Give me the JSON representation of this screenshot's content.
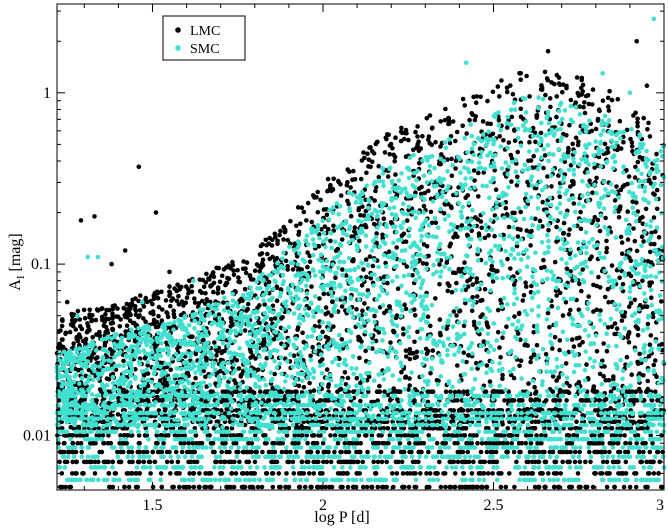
{
  "chart_data": {
    "type": "scatter",
    "xlabel": "log P [d]",
    "ylabel": "A",
    "ylabel_subscript": "I",
    "ylabel_unit": " [mag]",
    "xlim": [
      1.22,
      3.0
    ],
    "ylim": [
      0.0048,
      3.3
    ],
    "y_scale": "log",
    "x_ticks": [
      {
        "value": 1.5,
        "label": "1.5"
      },
      {
        "value": 2.0,
        "label": "2"
      },
      {
        "value": 2.5,
        "label": "2.5"
      },
      {
        "value": 3.0,
        "label": "3"
      }
    ],
    "y_ticks": [
      {
        "value": 0.01,
        "label": "0.01"
      },
      {
        "value": 0.1,
        "label": "0.1"
      },
      {
        "value": 1.0,
        "label": "1"
      }
    ],
    "grid": false,
    "legend_position": "top-left",
    "series": [
      {
        "name": "LMC",
        "color": "#000000",
        "envelope_logP": [
          1.22,
          1.4,
          1.6,
          1.8,
          2.0,
          2.2,
          2.4,
          2.6,
          2.8,
          3.0
        ],
        "envelope_upper_A": [
          0.05,
          0.06,
          0.08,
          0.12,
          0.3,
          0.6,
          0.9,
          1.4,
          1.2,
          0.6
        ],
        "floor_A": 0.005,
        "quantization_levels_A": [
          0.005,
          0.006,
          0.007,
          0.008,
          0.009,
          0.01,
          0.011,
          0.012,
          0.013,
          0.014,
          0.016,
          0.018
        ],
        "scattered_points": [
          {
            "x": 1.29,
            "y": 0.18
          },
          {
            "x": 1.33,
            "y": 0.19
          },
          {
            "x": 1.46,
            "y": 0.37
          },
          {
            "x": 1.51,
            "y": 0.2
          },
          {
            "x": 1.42,
            "y": 0.12
          },
          {
            "x": 2.58,
            "y": 1.3
          },
          {
            "x": 2.66,
            "y": 1.75
          },
          {
            "x": 2.92,
            "y": 2.0
          },
          {
            "x": 2.95,
            "y": 1.1
          },
          {
            "x": 1.25,
            "y": 0.06
          },
          {
            "x": 1.38,
            "y": 0.1
          },
          {
            "x": 1.55,
            "y": 0.09
          }
        ]
      },
      {
        "name": "SMC",
        "color": "#40e0d0",
        "envelope_logP": [
          1.22,
          1.4,
          1.6,
          1.8,
          2.0,
          2.2,
          2.4,
          2.6,
          2.8,
          3.0
        ],
        "envelope_upper_A": [
          0.03,
          0.04,
          0.05,
          0.08,
          0.2,
          0.4,
          0.6,
          1.0,
          0.8,
          0.5
        ],
        "floor_A": 0.005,
        "quantization_levels_A": [
          0.0055,
          0.0065,
          0.0075,
          0.0085,
          0.0095,
          0.0105,
          0.0115,
          0.0125,
          0.0135,
          0.015,
          0.017
        ],
        "scattered_points": [
          {
            "x": 1.31,
            "y": 0.11
          },
          {
            "x": 1.34,
            "y": 0.11
          },
          {
            "x": 1.47,
            "y": 0.06
          },
          {
            "x": 2.42,
            "y": 1.5
          },
          {
            "x": 2.82,
            "y": 1.3
          },
          {
            "x": 2.97,
            "y": 2.7
          },
          {
            "x": 2.9,
            "y": 1.0
          },
          {
            "x": 1.28,
            "y": 0.05
          },
          {
            "x": 1.62,
            "y": 0.08
          }
        ]
      }
    ]
  }
}
